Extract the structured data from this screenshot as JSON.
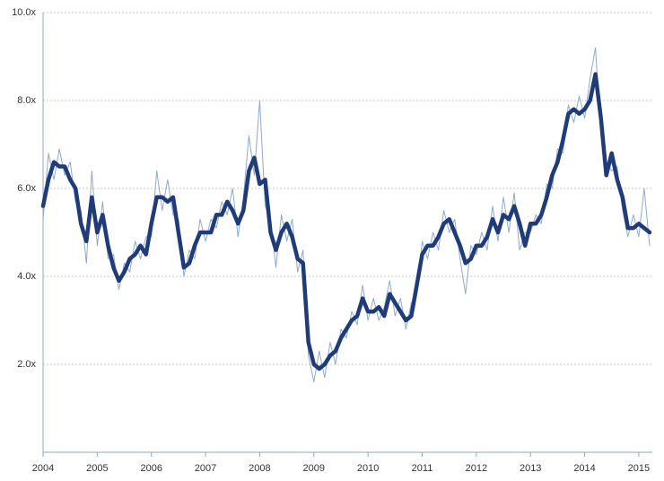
{
  "chart_data": {
    "type": "line",
    "x": [
      2004.0,
      2004.1,
      2004.2,
      2004.3,
      2004.4,
      2004.5,
      2004.6,
      2004.7,
      2004.8,
      2004.9,
      2005.0,
      2005.1,
      2005.2,
      2005.3,
      2005.4,
      2005.5,
      2005.6,
      2005.7,
      2005.8,
      2005.9,
      2006.0,
      2006.1,
      2006.2,
      2006.3,
      2006.4,
      2006.5,
      2006.6,
      2006.7,
      2006.8,
      2006.9,
      2007.0,
      2007.1,
      2007.2,
      2007.3,
      2007.4,
      2007.5,
      2007.6,
      2007.7,
      2007.8,
      2007.9,
      2008.0,
      2008.1,
      2008.2,
      2008.3,
      2008.4,
      2008.5,
      2008.6,
      2008.7,
      2008.8,
      2008.9,
      2009.0,
      2009.1,
      2009.2,
      2009.3,
      2009.4,
      2009.5,
      2009.6,
      2009.7,
      2009.8,
      2009.9,
      2010.0,
      2010.1,
      2010.2,
      2010.3,
      2010.4,
      2010.5,
      2010.6,
      2010.7,
      2010.8,
      2010.9,
      2011.0,
      2011.1,
      2011.2,
      2011.3,
      2011.4,
      2011.5,
      2011.6,
      2011.7,
      2011.8,
      2011.9,
      2012.0,
      2012.1,
      2012.2,
      2012.3,
      2012.4,
      2012.5,
      2012.6,
      2012.7,
      2012.8,
      2012.9,
      2013.0,
      2013.1,
      2013.2,
      2013.3,
      2013.4,
      2013.5,
      2013.6,
      2013.7,
      2013.8,
      2013.9,
      2014.0,
      2014.1,
      2014.2,
      2014.3,
      2014.4,
      2014.5,
      2014.6,
      2014.7,
      2014.8,
      2014.9,
      2015.0,
      2015.1,
      2015.2
    ],
    "series": [
      {
        "color": "#8fa9d0",
        "width": 1,
        "values": [
          5.3,
          6.8,
          6.2,
          6.9,
          6.3,
          6.6,
          5.7,
          5.5,
          4.3,
          6.4,
          4.7,
          5.7,
          4.4,
          4.5,
          3.7,
          4.3,
          4.1,
          4.8,
          4.4,
          4.9,
          4.9,
          6.4,
          5.5,
          6.2,
          5.4,
          5.3,
          4.0,
          4.6,
          4.4,
          5.3,
          4.8,
          5.3,
          5.1,
          5.7,
          5.4,
          6.0,
          4.9,
          5.8,
          7.2,
          6.3,
          8.0,
          5.6,
          5.3,
          4.2,
          5.4,
          4.8,
          5.3,
          4.1,
          4.6,
          2.2,
          1.6,
          2.3,
          1.7,
          2.5,
          2.0,
          2.8,
          2.6,
          3.2,
          2.9,
          3.8,
          3.0,
          3.5,
          3.0,
          3.3,
          3.9,
          3.1,
          3.5,
          2.8,
          3.4,
          3.6,
          4.8,
          4.4,
          5.0,
          4.6,
          5.5,
          5.0,
          5.3,
          4.4,
          3.6,
          4.7,
          4.5,
          5.0,
          4.6,
          5.6,
          4.8,
          5.8,
          5.0,
          5.9,
          4.6,
          5.0,
          5.0,
          5.4,
          5.2,
          6.1,
          6.0,
          6.9,
          6.8,
          7.9,
          7.5,
          8.1,
          7.6,
          8.5,
          9.2,
          7.2,
          6.6,
          6.4,
          6.5,
          5.5,
          4.9,
          5.4,
          4.9,
          6.0,
          4.7
        ]
      },
      {
        "color": "#1f3c78",
        "width": 4.5,
        "values": [
          5.6,
          6.2,
          6.6,
          6.5,
          6.5,
          6.2,
          6.0,
          5.2,
          4.8,
          5.8,
          5.0,
          5.4,
          4.7,
          4.2,
          3.9,
          4.1,
          4.4,
          4.5,
          4.7,
          4.5,
          5.2,
          5.8,
          5.8,
          5.7,
          5.8,
          5.0,
          4.2,
          4.3,
          4.7,
          5.0,
          5.0,
          5.0,
          5.4,
          5.4,
          5.7,
          5.5,
          5.2,
          5.5,
          6.4,
          6.7,
          6.1,
          6.2,
          5.0,
          4.6,
          5.0,
          5.2,
          4.9,
          4.4,
          4.3,
          2.5,
          2.0,
          1.9,
          2.0,
          2.2,
          2.3,
          2.6,
          2.8,
          3.0,
          3.1,
          3.5,
          3.2,
          3.2,
          3.3,
          3.1,
          3.6,
          3.4,
          3.2,
          3.0,
          3.1,
          3.8,
          4.5,
          4.7,
          4.7,
          4.9,
          5.2,
          5.3,
          5.0,
          4.7,
          4.3,
          4.4,
          4.7,
          4.7,
          4.9,
          5.3,
          5.0,
          5.4,
          5.3,
          5.6,
          5.2,
          4.7,
          5.2,
          5.2,
          5.4,
          5.8,
          6.3,
          6.6,
          7.1,
          7.7,
          7.8,
          7.7,
          7.8,
          8.0,
          8.6,
          7.6,
          6.3,
          6.8,
          6.2,
          5.8,
          5.1,
          5.1,
          5.2,
          5.1,
          5.0
        ]
      }
    ],
    "xlim": [
      2004,
      2015.25
    ],
    "xticks": [
      2004,
      2005,
      2006,
      2007,
      2008,
      2009,
      2010,
      2011,
      2012,
      2013,
      2014,
      2015
    ],
    "ylim": [
      0,
      10
    ],
    "yticks": [
      {
        "value": 2,
        "label": "2.0x"
      },
      {
        "value": 4,
        "label": "4.0x"
      },
      {
        "value": 6,
        "label": "6.0x"
      },
      {
        "value": 8,
        "label": "8.0x"
      },
      {
        "value": 10,
        "label": "10.0x"
      }
    ],
    "grid": true
  }
}
